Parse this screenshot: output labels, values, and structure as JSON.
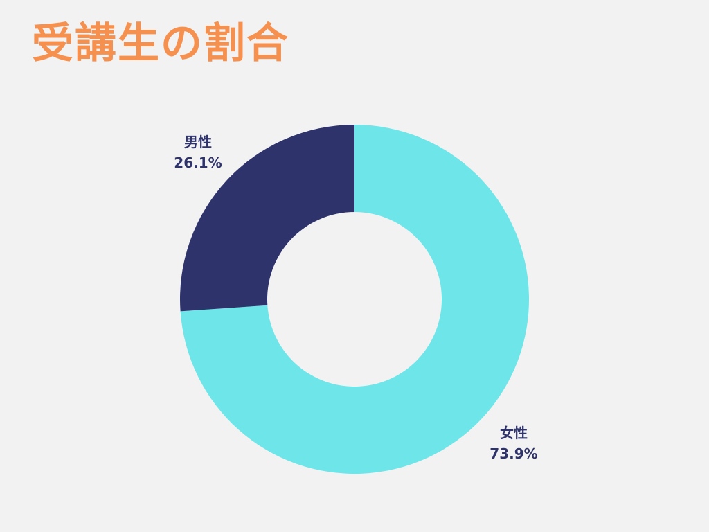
{
  "chart_data": {
    "type": "pie",
    "title": "受講生の割合",
    "categories": [
      "女性",
      "男性"
    ],
    "values": [
      73.9,
      26.1
    ],
    "value_labels": [
      "73.9%",
      "26.1%"
    ],
    "donut": true,
    "colors": [
      "#6ee5e8",
      "#2f336b"
    ],
    "label_placement": "outside",
    "start": "12 o'clock, clockwise"
  },
  "colors": {
    "background": "#f2f2f2",
    "title": "#f5904f",
    "label_text": "#2f336b"
  }
}
